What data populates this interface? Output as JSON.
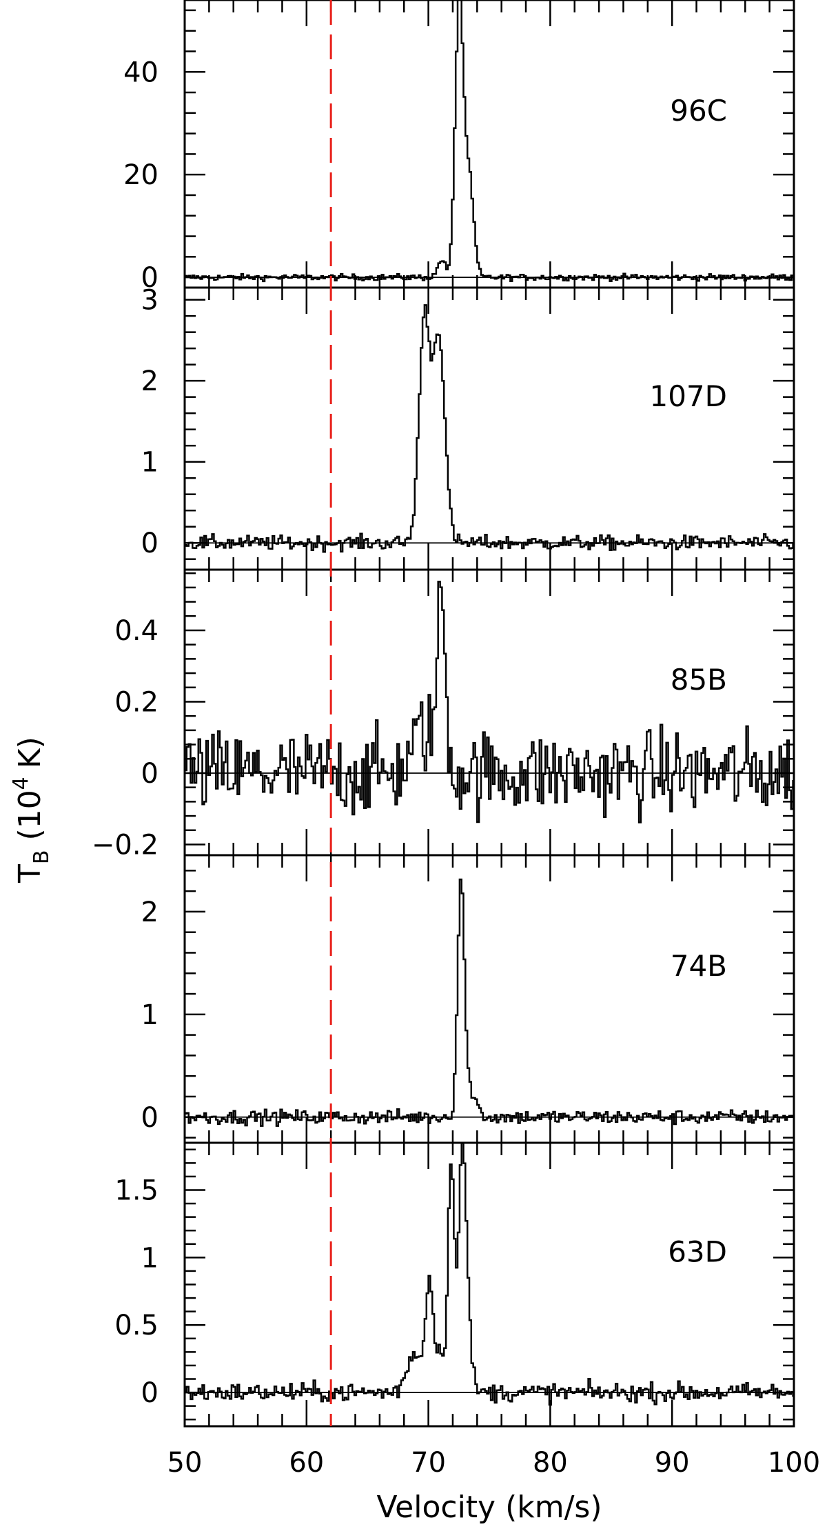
{
  "chart_data": {
    "type": "line",
    "style": "step",
    "xlabel": "Velocity (km/s)",
    "ylabel": "T",
    "ylabel_subscript": "B",
    "ylabel_unit_prefix": "(10",
    "ylabel_unit_exponent": "4",
    "ylabel_unit_suffix": "K)",
    "xlim": [
      50,
      100
    ],
    "x_ticks": [
      50,
      60,
      70,
      80,
      90,
      100
    ],
    "x_tick_labels": [
      "50",
      "60",
      "70",
      "80",
      "90",
      "100"
    ],
    "reference_line": {
      "x": 62,
      "color": "#e8201a",
      "style": "dashed"
    },
    "panels": [
      {
        "name": "96C",
        "ylim": [
          -2,
          54
        ],
        "y_ticks": [
          0,
          20,
          40
        ],
        "y_tick_labels": [
          "0",
          "20",
          "40"
        ],
        "noise": 0.3,
        "peaks": [
          {
            "center": 71.0,
            "amplitude": 3.5,
            "sigma": 0.3
          },
          {
            "center": 72.45,
            "amplitude": 53.5,
            "sigma": 0.33
          },
          {
            "center": 73.25,
            "amplitude": 19.5,
            "sigma": 0.38
          }
        ]
      },
      {
        "name": "107D",
        "ylim": [
          -0.33,
          3.15
        ],
        "y_ticks": [
          0,
          1,
          2,
          3
        ],
        "y_tick_labels": [
          "0",
          "1",
          "2",
          "3"
        ],
        "noise": 0.045,
        "peaks": [
          {
            "center": 69.6,
            "amplitude": 2.75,
            "sigma": 0.45
          },
          {
            "center": 70.8,
            "amplitude": 2.55,
            "sigma": 0.48
          }
        ]
      },
      {
        "name": "85B",
        "ylim": [
          -0.23,
          0.57
        ],
        "y_ticks": [
          -0.2,
          0,
          0.2,
          0.4
        ],
        "y_tick_labels": [
          "−0.2",
          "0",
          "0.2",
          "0.4"
        ],
        "noise": 0.06,
        "peaks": [
          {
            "center": 69.6,
            "amplitude": 0.12,
            "sigma": 0.9
          },
          {
            "center": 71.0,
            "amplitude": 0.47,
            "sigma": 0.33
          }
        ]
      },
      {
        "name": "74B",
        "ylim": [
          -0.25,
          2.55
        ],
        "y_ticks": [
          0,
          1,
          2
        ],
        "y_tick_labels": [
          "0",
          "1",
          "2"
        ],
        "noise": 0.035,
        "peaks": [
          {
            "center": 72.6,
            "amplitude": 2.3,
            "sigma": 0.28
          },
          {
            "center": 73.4,
            "amplitude": 0.25,
            "sigma": 0.45
          }
        ]
      },
      {
        "name": "63D",
        "ylim": [
          -0.25,
          1.85
        ],
        "y_ticks": [
          0,
          0.5,
          1,
          1.5
        ],
        "y_tick_labels": [
          "0",
          "0.5",
          "1",
          "1.5"
        ],
        "noise": 0.035,
        "peaks": [
          {
            "center": 68.8,
            "amplitude": 0.3,
            "sigma": 0.6
          },
          {
            "center": 70.0,
            "amplitude": 0.8,
            "sigma": 0.3
          },
          {
            "center": 70.8,
            "amplitude": 0.3,
            "sigma": 0.35
          },
          {
            "center": 71.8,
            "amplitude": 1.7,
            "sigma": 0.27
          },
          {
            "center": 72.7,
            "amplitude": 1.75,
            "sigma": 0.3
          },
          {
            "center": 73.2,
            "amplitude": 0.4,
            "sigma": 0.3
          }
        ]
      }
    ]
  }
}
